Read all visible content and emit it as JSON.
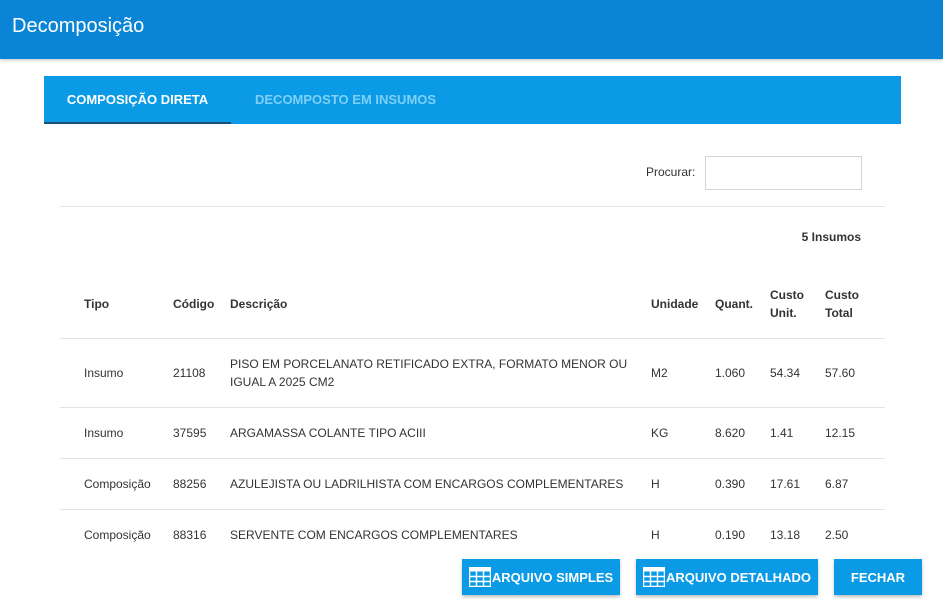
{
  "header": {
    "title": "Decomposição"
  },
  "tabs": [
    {
      "label": "COMPOSIÇÃO DIRETA",
      "active": true
    },
    {
      "label": "DECOMPOSTO EM INSUMOS",
      "active": false
    }
  ],
  "search": {
    "label": "Procurar:",
    "value": ""
  },
  "summary": {
    "count_label": "5 Insumos"
  },
  "table": {
    "headers": {
      "tipo": "Tipo",
      "codigo": "Código",
      "descricao": "Descrição",
      "unidade": "Unidade",
      "quant": "Quant.",
      "custo_unit": "Custo Unit.",
      "custo_total": "Custo Total"
    },
    "rows": [
      {
        "tipo": "Insumo",
        "codigo": "21108",
        "descricao": "PISO EM PORCELANATO RETIFICADO EXTRA, FORMATO MENOR OU IGUAL A 2025 CM2",
        "unidade": "M2",
        "quant": "1.060",
        "custo_unit": "54.34",
        "custo_total": "57.60"
      },
      {
        "tipo": "Insumo",
        "codigo": "37595",
        "descricao": "ARGAMASSA COLANTE TIPO ACIII",
        "unidade": "KG",
        "quant": "8.620",
        "custo_unit": "1.41",
        "custo_total": "12.15"
      },
      {
        "tipo": "Composição",
        "codigo": "88256",
        "descricao": "AZULEJISTA OU LADRILHISTA COM ENCARGOS COMPLEMENTARES",
        "unidade": "H",
        "quant": "0.390",
        "custo_unit": "17.61",
        "custo_total": "6.87"
      },
      {
        "tipo": "Composição",
        "codigo": "88316",
        "descricao": "SERVENTE COM ENCARGOS COMPLEMENTARES",
        "unidade": "H",
        "quant": "0.190",
        "custo_unit": "13.18",
        "custo_total": "2.50"
      }
    ]
  },
  "footer": {
    "arquivo_simples": "ARQUIVO SIMPLES",
    "arquivo_detalhado": "ARQUIVO DETALHADO",
    "fechar": "FECHAR"
  },
  "icons": {
    "spreadsheet": "grid-table-icon"
  },
  "colors": {
    "header_bg": "#0a85d6",
    "tab_bar_bg": "#0a9ae6",
    "button_bg": "#0a9ae6"
  }
}
